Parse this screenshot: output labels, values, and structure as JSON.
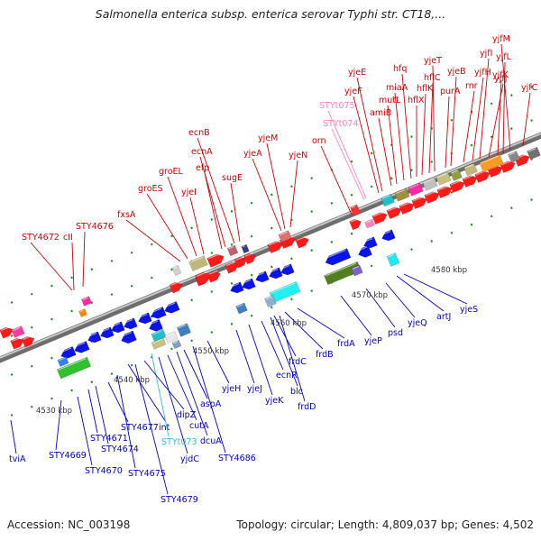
{
  "title": "Salmonella enterica subsp. enterica serovar Typhi str. CT18,...",
  "footer": {
    "accession": "Accession: NC_003198",
    "summary": "Topology: circular; Length: 4,809,037 bp; Genes: 4,502"
  },
  "colors": {
    "top_label": "#d40000",
    "bottom_label": "#0000c8",
    "rna_top": "#ff80c0",
    "rna_bottom": "#30c0e0",
    "backbone": "#8c8c8c"
  },
  "scale_labels": [
    "4530 kbp",
    "4540 kbp",
    "4550 kbp",
    "4560 kbp",
    "4570 kbp",
    "4580 kbp"
  ],
  "top_labels": [
    "STY4672",
    "cII",
    "STY4676",
    "fxsA",
    "groES",
    "groEL",
    "yjeI",
    "efp",
    "ecnA",
    "ecnB",
    "sugE",
    "yjeA",
    "yjeM",
    "yjeN",
    "orn",
    "STYt074",
    "STYt075",
    "yjeF",
    "yjeE",
    "amiB",
    "mutL",
    "miaA",
    "hfq",
    "hflX",
    "hflK",
    "hflC",
    "yjeT",
    "purA",
    "yjeB",
    "rnr",
    "yjfH",
    "yjfI",
    "yjfJ",
    "yjfK",
    "yjfL",
    "yjfM",
    "yjfC"
  ],
  "bottom_labels": [
    "tviA",
    "STY4669",
    "STY4670",
    "STY4671",
    "STY4674",
    "STY4675",
    "STY4677",
    "int",
    "STY4679",
    "STYt073",
    "dipZ",
    "yjdC",
    "cutA",
    "dcuA",
    "aspA",
    "STY4686",
    "yjeH",
    "yjeJ",
    "yjeK",
    "ecnR",
    "blc",
    "frdC",
    "frdD",
    "frdB",
    "frdA",
    "yjeP",
    "psd",
    "yjeQ",
    "artJ",
    "yjeS"
  ]
}
